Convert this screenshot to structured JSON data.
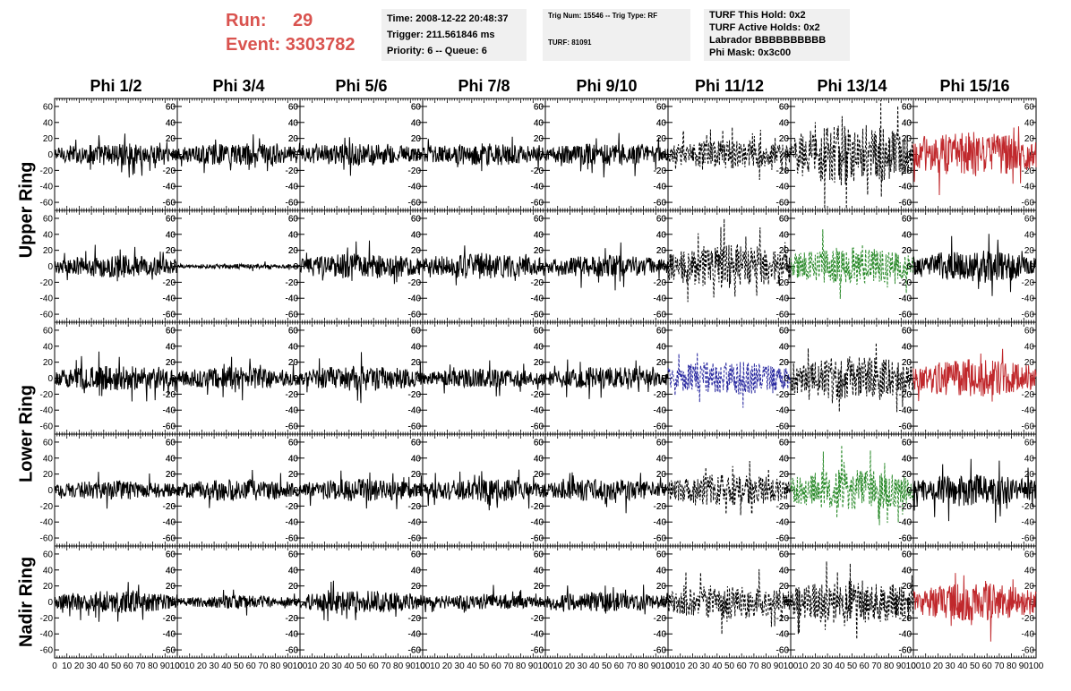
{
  "header": {
    "run_label": "Run:",
    "run_value": "29",
    "event_label": "Event:",
    "event_value": "3303782",
    "time": "Time: 2008-12-22 20:48:37",
    "trigger": "Trigger: 211.561846 ms",
    "priority": "Priority: 6 -- Queue: 6",
    "trig_num": "Trig Num: 15546 -- Trig Type: RF",
    "turf": "TURF: 81091",
    "turf_this_hold": "TURF This Hold: 0x2",
    "turf_active_holds": "TURF Active Holds: 0x2",
    "labrador": "Labrador BBBBBBBBBB",
    "phi_mask": "Phi Mask: 0x3c00"
  },
  "colors": {
    "run_text": "#d9534f",
    "trace_default": "#000000",
    "trace_red": "#c0282c",
    "trace_blue": "#2a2aa0",
    "trace_green": "#2a8a2a",
    "info_bg": "#f0f0f0"
  },
  "chart_data": {
    "type": "line",
    "columns": [
      "Phi 1/2",
      "Phi 3/4",
      "Phi 5/6",
      "Phi 7/8",
      "Phi 9/10",
      "Phi 11/12",
      "Phi 13/14",
      "Phi 15/16"
    ],
    "ring_labels": [
      {
        "name": "Upper Ring",
        "rows": [
          0,
          1
        ]
      },
      {
        "name": "Lower Ring",
        "rows": [
          2,
          3
        ]
      },
      {
        "name": "Nadir Ring",
        "rows": [
          4
        ]
      }
    ],
    "rows": 5,
    "xlim": [
      0,
      100
    ],
    "ylim": [
      -70,
      70
    ],
    "y_ticks": [
      -60,
      -40,
      -20,
      0,
      20,
      40,
      60
    ],
    "x_ticks": [
      0,
      10,
      20,
      30,
      40,
      50,
      60,
      70,
      80,
      90,
      100
    ],
    "traces": [
      {
        "row": 0,
        "col": 0,
        "amp": 14,
        "color": "trace_default",
        "dashed": false
      },
      {
        "row": 0,
        "col": 1,
        "amp": 14,
        "color": "trace_default",
        "dashed": false
      },
      {
        "row": 0,
        "col": 2,
        "amp": 14,
        "color": "trace_default",
        "dashed": false
      },
      {
        "row": 0,
        "col": 3,
        "amp": 14,
        "color": "trace_default",
        "dashed": false
      },
      {
        "row": 0,
        "col": 4,
        "amp": 14,
        "color": "trace_default",
        "dashed": false
      },
      {
        "row": 0,
        "col": 5,
        "amp": 18,
        "color": "trace_default",
        "dashed": true
      },
      {
        "row": 0,
        "col": 6,
        "amp": 38,
        "color": "trace_default",
        "dashed": true
      },
      {
        "row": 0,
        "col": 7,
        "amp": 28,
        "color": "trace_red",
        "dashed": false
      },
      {
        "row": 1,
        "col": 0,
        "amp": 14,
        "color": "trace_default",
        "dashed": false
      },
      {
        "row": 1,
        "col": 1,
        "amp": 3,
        "color": "trace_default",
        "dashed": false
      },
      {
        "row": 1,
        "col": 2,
        "amp": 16,
        "color": "trace_default",
        "dashed": false
      },
      {
        "row": 1,
        "col": 3,
        "amp": 16,
        "color": "trace_default",
        "dashed": false
      },
      {
        "row": 1,
        "col": 4,
        "amp": 14,
        "color": "trace_default",
        "dashed": false
      },
      {
        "row": 1,
        "col": 5,
        "amp": 28,
        "color": "trace_default",
        "dashed": true
      },
      {
        "row": 1,
        "col": 6,
        "amp": 24,
        "color": "trace_green",
        "dashed": true
      },
      {
        "row": 1,
        "col": 7,
        "amp": 20,
        "color": "trace_default",
        "dashed": false
      },
      {
        "row": 2,
        "col": 0,
        "amp": 16,
        "color": "trace_default",
        "dashed": false
      },
      {
        "row": 2,
        "col": 1,
        "amp": 14,
        "color": "trace_default",
        "dashed": false
      },
      {
        "row": 2,
        "col": 2,
        "amp": 16,
        "color": "trace_default",
        "dashed": false
      },
      {
        "row": 2,
        "col": 3,
        "amp": 12,
        "color": "trace_default",
        "dashed": false
      },
      {
        "row": 2,
        "col": 4,
        "amp": 14,
        "color": "trace_default",
        "dashed": false
      },
      {
        "row": 2,
        "col": 5,
        "amp": 22,
        "color": "trace_blue",
        "dashed": true
      },
      {
        "row": 2,
        "col": 6,
        "amp": 28,
        "color": "trace_default",
        "dashed": true
      },
      {
        "row": 2,
        "col": 7,
        "amp": 24,
        "color": "trace_red",
        "dashed": false
      },
      {
        "row": 3,
        "col": 0,
        "amp": 12,
        "color": "trace_default",
        "dashed": false
      },
      {
        "row": 3,
        "col": 1,
        "amp": 14,
        "color": "trace_default",
        "dashed": false
      },
      {
        "row": 3,
        "col": 2,
        "amp": 14,
        "color": "trace_default",
        "dashed": false
      },
      {
        "row": 3,
        "col": 3,
        "amp": 14,
        "color": "trace_default",
        "dashed": false
      },
      {
        "row": 3,
        "col": 4,
        "amp": 14,
        "color": "trace_default",
        "dashed": false
      },
      {
        "row": 3,
        "col": 5,
        "amp": 20,
        "color": "trace_default",
        "dashed": true
      },
      {
        "row": 3,
        "col": 6,
        "amp": 26,
        "color": "trace_green",
        "dashed": true
      },
      {
        "row": 3,
        "col": 7,
        "amp": 20,
        "color": "trace_default",
        "dashed": false
      },
      {
        "row": 4,
        "col": 0,
        "amp": 14,
        "color": "trace_default",
        "dashed": false
      },
      {
        "row": 4,
        "col": 1,
        "amp": 8,
        "color": "trace_default",
        "dashed": false
      },
      {
        "row": 4,
        "col": 2,
        "amp": 14,
        "color": "trace_default",
        "dashed": false
      },
      {
        "row": 4,
        "col": 3,
        "amp": 10,
        "color": "trace_default",
        "dashed": false
      },
      {
        "row": 4,
        "col": 4,
        "amp": 12,
        "color": "trace_default",
        "dashed": false
      },
      {
        "row": 4,
        "col": 5,
        "amp": 22,
        "color": "trace_default",
        "dashed": true
      },
      {
        "row": 4,
        "col": 6,
        "amp": 28,
        "color": "trace_default",
        "dashed": true
      },
      {
        "row": 4,
        "col": 7,
        "amp": 24,
        "color": "trace_red",
        "dashed": false
      }
    ]
  }
}
